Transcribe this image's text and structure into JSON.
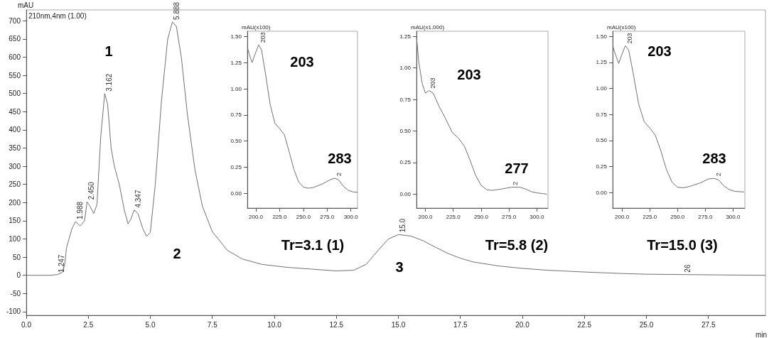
{
  "chart_data": [
    {
      "type": "line",
      "xlabel": "min",
      "ylabel": "mAU",
      "color": "#707070",
      "grid": false,
      "xlim": [
        0,
        29.8
      ],
      "xticks": [
        {
          "value": 0,
          "label": "0.0"
        },
        2.5,
        {
          "value": 5,
          "label": "5.0"
        },
        7.5,
        {
          "value": 10,
          "label": "10.0"
        },
        12.5,
        {
          "value": 15,
          "label": "15.0"
        },
        17.5,
        {
          "value": 20,
          "label": "20.0"
        },
        22.5,
        {
          "value": 25,
          "label": "25.0"
        },
        27.5
      ],
      "ylim": [
        -110,
        730
      ],
      "yticks": [
        -100,
        -50,
        0,
        50,
        100,
        150,
        200,
        250,
        300,
        350,
        400,
        450,
        500,
        550,
        600,
        650,
        700
      ],
      "x": [
        0,
        1.0,
        1.25,
        1.45,
        1.55,
        1.62,
        1.72,
        1.85,
        1.99,
        2.1,
        2.17,
        2.25,
        2.35,
        2.45,
        2.55,
        2.72,
        2.85,
        3.0,
        3.16,
        3.28,
        3.42,
        3.55,
        3.75,
        3.95,
        4.1,
        4.2,
        4.35,
        4.5,
        4.7,
        4.85,
        5.0,
        5.2,
        5.45,
        5.7,
        5.89,
        6.05,
        6.25,
        6.5,
        6.8,
        7.1,
        7.5,
        8.1,
        8.7,
        9.5,
        10.5,
        11.5,
        12.5,
        13.2,
        13.7,
        14.2,
        14.6,
        15.0,
        15.5,
        16.0,
        16.5,
        17.0,
        17.5,
        18.0,
        19.0,
        20.0,
        21.0,
        22.5,
        24.0,
        25.0,
        26.5,
        28.0,
        29.8
      ],
      "values": [
        0,
        0,
        2,
        8,
        30,
        75,
        100,
        130,
        148,
        140,
        136,
        142,
        150,
        202,
        192,
        170,
        195,
        380,
        500,
        470,
        350,
        300,
        250,
        180,
        142,
        152,
        180,
        170,
        128,
        107,
        118,
        250,
        480,
        650,
        697,
        685,
        600,
        440,
        290,
        190,
        120,
        69,
        45,
        30,
        22,
        17,
        12,
        14,
        30,
        70,
        100,
        112,
        108,
        95,
        77,
        60,
        47,
        37,
        26,
        19,
        14,
        9,
        5,
        3,
        2,
        1,
        0
      ],
      "annotations": [
        "210nm,4nm (1.00)",
        "1",
        "2",
        "3",
        {
          "text": "1.247",
          "x": 1.25,
          "y": 2
        },
        {
          "text": "1.988",
          "x": 1.99,
          "y": 148
        },
        {
          "text": "2.450",
          "x": 2.45,
          "y": 202
        },
        {
          "text": "3.162",
          "x": 3.16,
          "y": 500
        },
        {
          "text": "4.347",
          "x": 4.35,
          "y": 180
        },
        {
          "text": "5.888",
          "x": 5.89,
          "y": 697
        },
        {
          "text": "15.0",
          "x": 15.0,
          "y": 112
        },
        {
          "text": "26",
          "x": 26.5,
          "y": 2
        }
      ]
    },
    {
      "type": "line",
      "ylabel": "mAU(x100)",
      "color": "#707070",
      "grid": false,
      "xlim": [
        191,
        307
      ],
      "xticks": [
        {
          "value": 200,
          "label": "200.0"
        },
        {
          "value": 225,
          "label": "225.0"
        },
        {
          "value": 250,
          "label": "250.0"
        },
        {
          "value": 275,
          "label": "275.0"
        },
        {
          "value": 300,
          "label": "300.0"
        }
      ],
      "ylim": [
        -0.14,
        1.55
      ],
      "yticks": [
        {
          "value": 0,
          "label": "0.00"
        },
        0.25,
        {
          "value": 0.5,
          "label": "0.50"
        },
        0.75,
        {
          "value": 1,
          "label": "1.00"
        },
        1.25,
        {
          "value": 1.5,
          "label": "1.50"
        }
      ],
      "x": [
        191,
        193,
        196,
        199,
        203,
        206,
        210,
        215,
        220,
        225,
        230,
        235,
        240,
        245,
        250,
        255,
        260,
        270,
        278,
        283,
        287,
        292,
        297,
        302,
        307
      ],
      "values": [
        1.4,
        1.33,
        1.25,
        1.33,
        1.42,
        1.37,
        1.15,
        0.85,
        0.67,
        0.62,
        0.56,
        0.4,
        0.23,
        0.11,
        0.06,
        0.05,
        0.055,
        0.09,
        0.13,
        0.145,
        0.13,
        0.07,
        0.03,
        0.015,
        0.01
      ],
      "annotations": [
        "Tr=3.1 (1)",
        "203",
        "283",
        {
          "text": "203",
          "x": 203,
          "y": 1.42
        },
        {
          "text": "2",
          "x": 283,
          "y": 0.145
        }
      ]
    },
    {
      "type": "line",
      "ylabel": "mAU(x1,000)",
      "color": "#707070",
      "grid": false,
      "xlim": [
        192,
        310
      ],
      "xticks": [
        {
          "value": 200,
          "label": "200.0"
        },
        {
          "value": 225,
          "label": "225.0"
        },
        {
          "value": 250,
          "label": "250.0"
        },
        {
          "value": 275,
          "label": "275.0"
        },
        {
          "value": 300,
          "label": "300.0"
        }
      ],
      "ylim": [
        -0.11,
        1.29
      ],
      "yticks": [
        {
          "value": 0,
          "label": "0.00"
        },
        0.25,
        {
          "value": 0.5,
          "label": "0.50"
        },
        0.75,
        {
          "value": 1,
          "label": "1.00"
        },
        1.25
      ],
      "x": [
        192,
        194,
        197,
        200,
        203,
        207,
        212,
        218,
        224,
        230,
        235,
        240,
        245,
        250,
        255,
        260,
        268,
        277,
        285,
        290,
        295,
        300,
        305,
        309
      ],
      "values": [
        1.25,
        1.05,
        0.88,
        0.8,
        0.82,
        0.8,
        0.7,
        0.6,
        0.49,
        0.44,
        0.38,
        0.27,
        0.15,
        0.07,
        0.035,
        0.03,
        0.04,
        0.055,
        0.055,
        0.04,
        0.02,
        0.01,
        0.005,
        0.0
      ],
      "annotations": [
        "Tr=5.8 (2)",
        "203",
        "277",
        {
          "text": "203",
          "x": 203,
          "y": 0.82
        },
        {
          "text": "2",
          "x": 277,
          "y": 0.055
        }
      ]
    },
    {
      "type": "line",
      "ylabel": "mAU(x100)",
      "color": "#707070",
      "grid": false,
      "xlim": [
        191.6,
        310.6
      ],
      "xticks": [
        {
          "value": 200,
          "label": "200.0"
        },
        {
          "value": 225,
          "label": "225.0"
        },
        {
          "value": 250,
          "label": "250.0"
        },
        {
          "value": 275,
          "label": "275.0"
        },
        {
          "value": 300,
          "label": "300.0"
        }
      ],
      "ylim": [
        -0.15,
        1.55
      ],
      "yticks": [
        {
          "value": 0,
          "label": "0.00"
        },
        0.25,
        {
          "value": 0.5,
          "label": "0.50"
        },
        0.75,
        {
          "value": 1,
          "label": "1.00"
        },
        1.25,
        {
          "value": 1.5,
          "label": "1.50"
        }
      ],
      "x": [
        192,
        194,
        197,
        200,
        203,
        206,
        210,
        215,
        220,
        225,
        230,
        235,
        240,
        245,
        250,
        255,
        260,
        270,
        278,
        283,
        287,
        292,
        297,
        302,
        310
      ],
      "values": [
        1.4,
        1.33,
        1.24,
        1.33,
        1.41,
        1.37,
        1.15,
        0.85,
        0.68,
        0.62,
        0.55,
        0.4,
        0.22,
        0.1,
        0.05,
        0.045,
        0.055,
        0.09,
        0.13,
        0.135,
        0.12,
        0.06,
        0.025,
        0.01,
        0.005
      ],
      "annotations": [
        "Tr=15.0 (3)",
        "203",
        "283",
        {
          "text": "203",
          "x": 203,
          "y": 1.41
        },
        {
          "text": "2",
          "x": 283,
          "y": 0.135
        }
      ]
    }
  ]
}
